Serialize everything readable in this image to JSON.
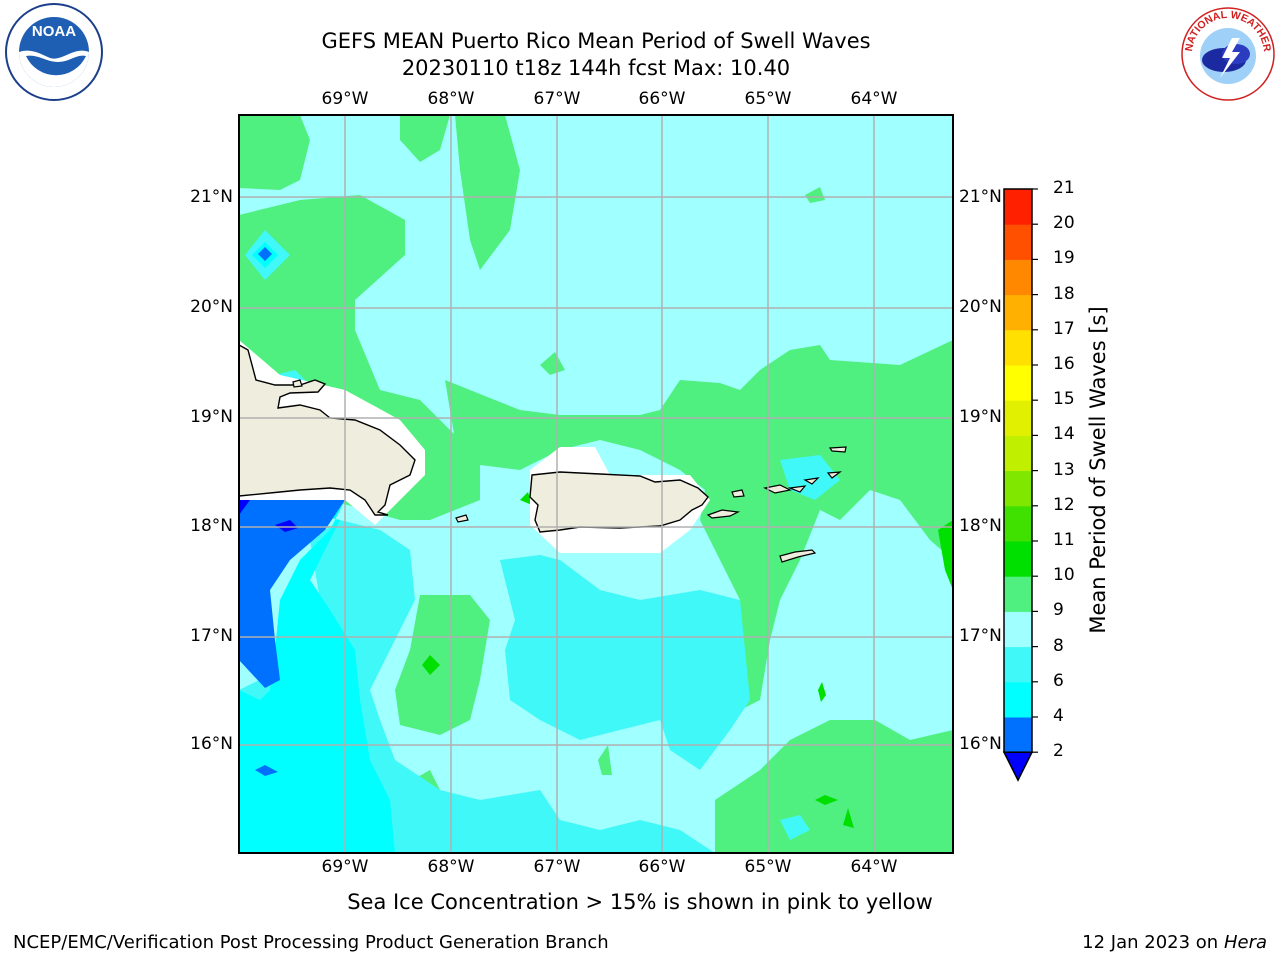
{
  "header": {
    "title_line1": "GEFS MEAN Puerto Rico Mean Period of Swell Waves",
    "title_line2": "20230110 t18z 144h fcst   Max: 10.40"
  },
  "logos": {
    "left": "NOAA",
    "right": "NATIONAL WEATHER SERVICE"
  },
  "map": {
    "lon_labels": [
      "69°W",
      "68°W",
      "67°W",
      "66°W",
      "65°W",
      "64°W"
    ],
    "lat_labels": [
      "21°N",
      "20°N",
      "19°N",
      "18°N",
      "17°N",
      "16°N"
    ],
    "land_color": "#efedde",
    "coast_color": "#000000",
    "grid_color": "#b0b0b0"
  },
  "colorbar": {
    "title": "Mean Period of Swell Waves [s]",
    "levels": [
      "2",
      "4",
      "6",
      "8",
      "9",
      "10",
      "11",
      "12",
      "13",
      "14",
      "15",
      "16",
      "17",
      "18",
      "19",
      "20",
      "21"
    ],
    "colors": [
      "#0070ff",
      "#00ffff",
      "#40f8f8",
      "#a0ffff",
      "#50f080",
      "#00e000",
      "#40e000",
      "#80e800",
      "#c0f000",
      "#e0f000",
      "#ffff00",
      "#ffe000",
      "#ffb000",
      "#ff8800",
      "#ff5000",
      "#ff2000"
    ],
    "under_color": "#0000ff"
  },
  "footer": {
    "ice_note": "Sea Ice Concentration > 15% is shown in pink to yellow",
    "credit": "NCEP/EMC/Verification Post Processing Product Generation Branch",
    "date_prefix": "12 Jan 2023 on ",
    "date_host": "Hera"
  }
}
